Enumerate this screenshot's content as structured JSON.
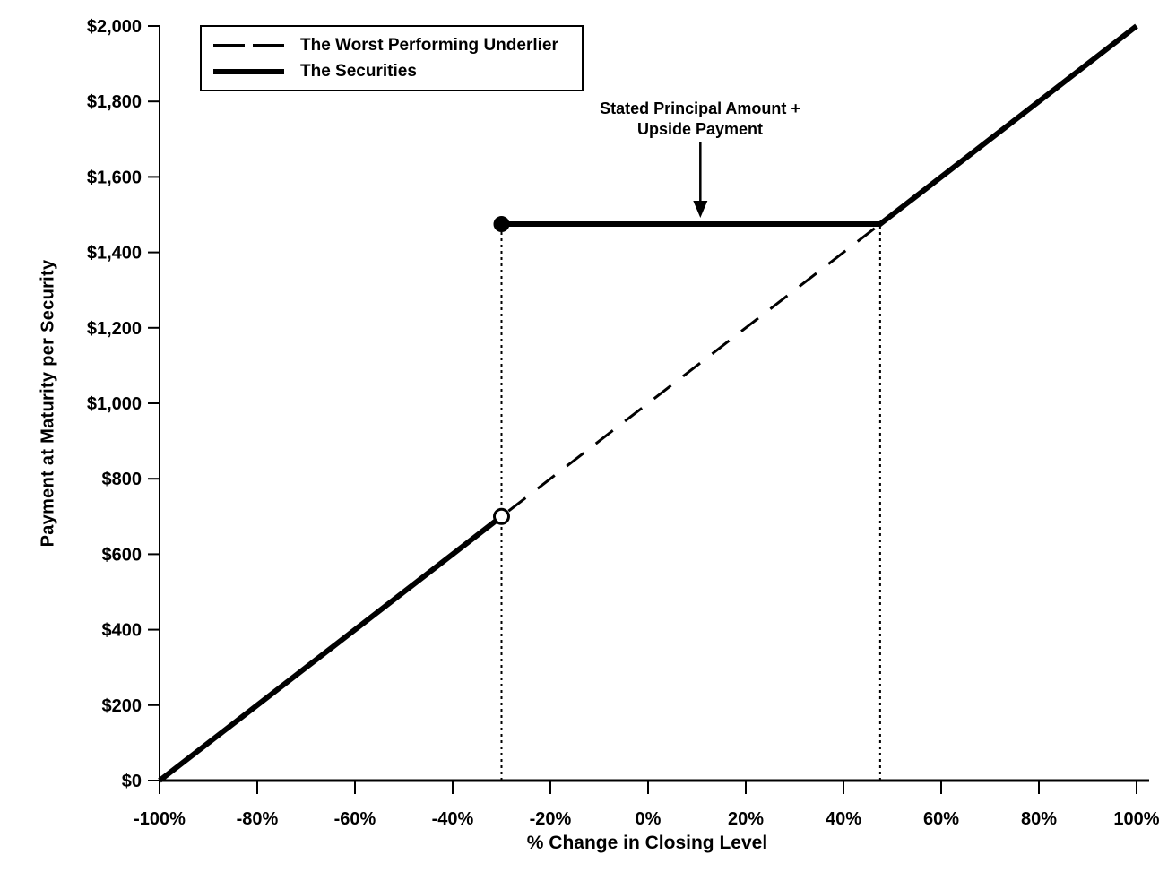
{
  "chart_data": {
    "type": "line",
    "title": "",
    "xlabel": "% Change in Closing Level",
    "ylabel": "Payment at Maturity per Security",
    "xlim": [
      -100,
      100
    ],
    "ylim": [
      0,
      2000
    ],
    "grid": false,
    "x_ticks": {
      "values": [
        -100,
        -80,
        -60,
        -40,
        -20,
        0,
        20,
        40,
        60,
        80,
        100
      ],
      "labels": [
        "-100%",
        "-80%",
        "-60%",
        "-40%",
        "-20%",
        "0%",
        "20%",
        "40%",
        "60%",
        "80%",
        "100%"
      ]
    },
    "y_ticks": {
      "values": [
        0,
        200,
        400,
        600,
        800,
        1000,
        1200,
        1400,
        1600,
        1800,
        2000
      ],
      "labels": [
        "$0",
        "$200",
        "$400",
        "$600",
        "$800",
        "$1,000",
        "$1,200",
        "$1,400",
        "$1,600",
        "$1,800",
        "$2,000"
      ]
    },
    "series": [
      {
        "name": "The Worst Performing Underlier",
        "style": "dashed",
        "points": [
          [
            -100,
            0
          ],
          [
            100,
            2000
          ]
        ]
      },
      {
        "name": "The Securities",
        "style": "solid-thick",
        "segments": [
          [
            [
              -100,
              0
            ],
            [
              -30,
              700
            ]
          ],
          [
            [
              -30,
              1475
            ],
            [
              47.5,
              1475
            ],
            [
              100,
              2000
            ]
          ]
        ]
      }
    ],
    "key_points": {
      "downside_threshold_pct": -30,
      "payment_just_below_threshold": 700,
      "stated_principal_plus_upside_payment": 1475,
      "upside_kink_pct": 47.5
    },
    "markers": [
      {
        "shape": "open-circle",
        "x": -30,
        "y": 700
      },
      {
        "shape": "filled-circle",
        "x": -30,
        "y": 1475
      }
    ],
    "guides": [
      {
        "type": "dotted-vertical",
        "x": -30,
        "y0": 0,
        "y1": 1475
      },
      {
        "type": "dotted-vertical",
        "x": 47.5,
        "y0": 0,
        "y1": 1475
      }
    ],
    "annotation": {
      "line1": "Stated Principal Amount +",
      "line2": "Upside Payment",
      "arrow_x_pct": 10.7,
      "arrow_points_to_y": 1475
    },
    "legend": {
      "position": "top-left",
      "entries": [
        {
          "label": "The Worst Performing Underlier",
          "style": "dashed"
        },
        {
          "label": "The Securities",
          "style": "solid-thick"
        }
      ]
    },
    "colors": {
      "stroke": "#000000",
      "background": "#ffffff"
    }
  }
}
